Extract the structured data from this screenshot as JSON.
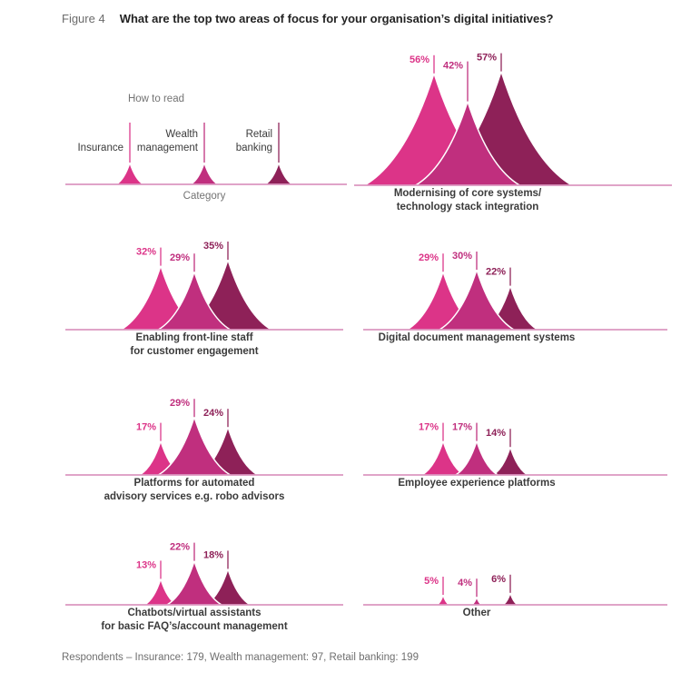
{
  "figure": {
    "label": "Figure 4",
    "title": "What are the top two areas of focus for your organisation’s digital initiatives?"
  },
  "legend": {
    "heading": "How to read",
    "axis_caption": "Category",
    "series": [
      {
        "name": "Insurance",
        "color": "#dc3488"
      },
      {
        "name": "Wealth management",
        "color": "#c02f7e"
      },
      {
        "name": "Retail banking",
        "color": "#8e2158"
      }
    ]
  },
  "theme": {
    "baseline_color": "#d685b5",
    "caption_color": "#3b3b3b",
    "muted_text_color": "#737373",
    "label_text_color": "#3b3b3b"
  },
  "chart_data": {
    "type": "area",
    "title": "What are the top two areas of focus for your organisation’s digital initiatives?",
    "unit": "%",
    "legend_position": "top-left",
    "grid": false,
    "ylim": [
      0,
      60
    ],
    "categories": [
      {
        "id": "modernising",
        "label_lines": [
          "Modernising of core systems/",
          "technology stack integration"
        ]
      },
      {
        "id": "frontline",
        "label_lines": [
          "Enabling front-line staff",
          "for customer engagement"
        ]
      },
      {
        "id": "digital-docs",
        "label_lines": [
          "Digital document management systems"
        ]
      },
      {
        "id": "robo",
        "label_lines": [
          "Platforms for automated",
          "advisory services e.g. robo advisors"
        ]
      },
      {
        "id": "employee",
        "label_lines": [
          "Employee experience platforms"
        ]
      },
      {
        "id": "chatbots",
        "label_lines": [
          "Chatbots/virtual assistants",
          "for basic FAQ’s/account management"
        ]
      },
      {
        "id": "other",
        "label_lines": [
          "Other"
        ]
      }
    ],
    "series": [
      {
        "name": "Insurance",
        "color": "#dc3488",
        "values": [
          56,
          32,
          29,
          17,
          17,
          13,
          5
        ]
      },
      {
        "name": "Wealth management",
        "color": "#c02f7e",
        "values": [
          42,
          29,
          30,
          29,
          17,
          22,
          4
        ]
      },
      {
        "name": "Retail banking",
        "color": "#8e2158",
        "values": [
          57,
          35,
          22,
          24,
          14,
          18,
          6
        ]
      }
    ]
  },
  "footer": {
    "text": "Respondents – Insurance: 179, Wealth management: 97, Retail banking: 199"
  }
}
